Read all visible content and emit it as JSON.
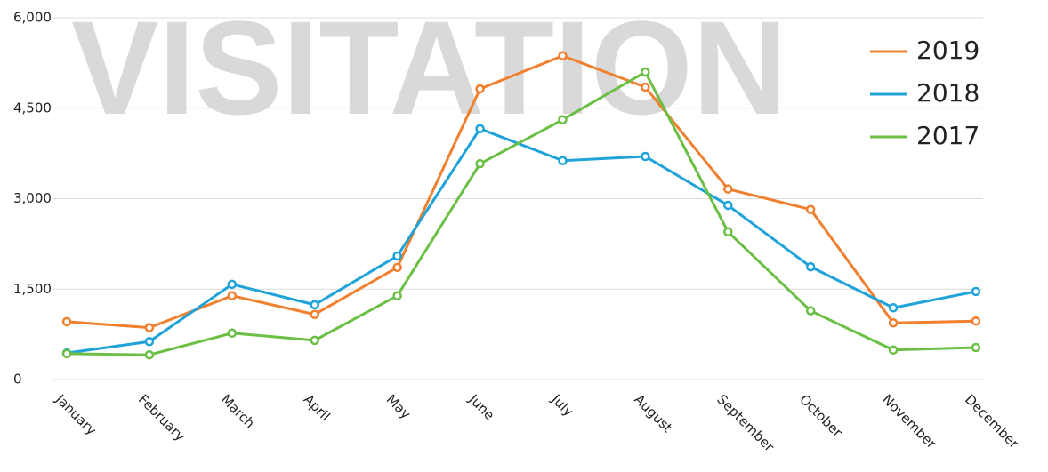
{
  "chart_data": {
    "type": "line",
    "watermark": "VISITATION",
    "categories": [
      "January",
      "February",
      "March",
      "April",
      "May",
      "June",
      "July",
      "August",
      "September",
      "October",
      "November",
      "December"
    ],
    "series": [
      {
        "name": "2019",
        "color": "#f07f2e",
        "values": [
          960,
          860,
          1390,
          1080,
          1860,
          4820,
          5370,
          4850,
          3160,
          2820,
          940,
          970
        ]
      },
      {
        "name": "2018",
        "color": "#1fa3d8",
        "values": [
          440,
          630,
          1580,
          1240,
          2050,
          4160,
          3630,
          3700,
          2890,
          1870,
          1190,
          1460
        ]
      },
      {
        "name": "2017",
        "color": "#6cbf45",
        "values": [
          430,
          410,
          770,
          650,
          1390,
          3580,
          4310,
          5100,
          2450,
          1140,
          490,
          530
        ]
      }
    ],
    "ylim": [
      0,
      6000
    ],
    "yticks": [
      0,
      {
        "value": 1500,
        "label": "1,500"
      },
      {
        "value": 3000,
        "label": "3,000"
      },
      {
        "value": 4500,
        "label": "4,500"
      },
      {
        "value": 6000,
        "label": "6,000"
      }
    ],
    "grid": true,
    "legend": "top-right"
  }
}
